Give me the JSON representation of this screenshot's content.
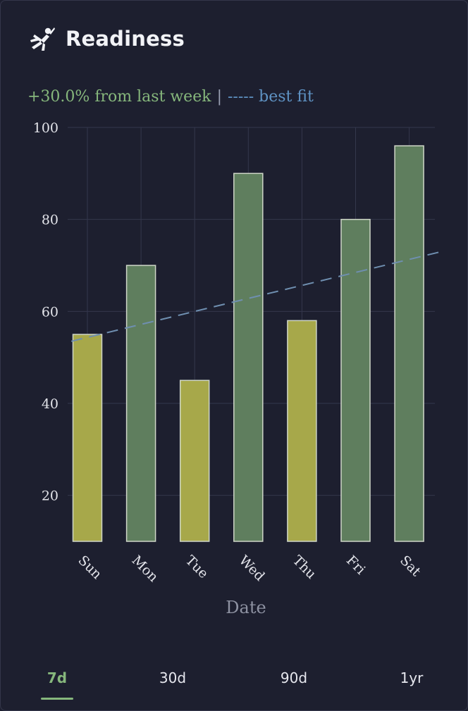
{
  "header": {
    "title": "Readiness",
    "icon": "flying-superhero-icon"
  },
  "summary": {
    "change_text": "+30.0% from last week",
    "separator": "|",
    "fit_legend": "----- best fit"
  },
  "colors": {
    "background": "#1d1f2f",
    "bar_low": "#a7a84a",
    "bar_high": "#5f7e5e",
    "bar_border": "#cfd6c8",
    "accent_green": "#86b77c",
    "fit_line": "#6f8fb0",
    "grid": "#34374c",
    "tick_text": "#e3e4ea",
    "axis_label": "#8e92a2"
  },
  "chart_data": {
    "type": "bar",
    "title": "Readiness",
    "xlabel": "Date",
    "ylabel": "",
    "categories": [
      "Sun",
      "Mon",
      "Tue",
      "Wed",
      "Thu",
      "Fri",
      "Sat"
    ],
    "values": [
      55,
      70,
      45,
      90,
      58,
      80,
      96
    ],
    "bar_level": [
      "low",
      "high",
      "low",
      "high",
      "low",
      "high",
      "high"
    ],
    "ylim": [
      10,
      100
    ],
    "yticks": [
      20,
      40,
      60,
      80,
      100
    ],
    "grid": true,
    "best_fit": {
      "style": "dashed",
      "start": {
        "x": -0.3,
        "y": 53.5
      },
      "end": {
        "x": 6.6,
        "y": 73
      }
    }
  },
  "tabs": [
    {
      "label": "7d",
      "active": true
    },
    {
      "label": "30d",
      "active": false
    },
    {
      "label": "90d",
      "active": false
    },
    {
      "label": "1yr",
      "active": false
    }
  ]
}
